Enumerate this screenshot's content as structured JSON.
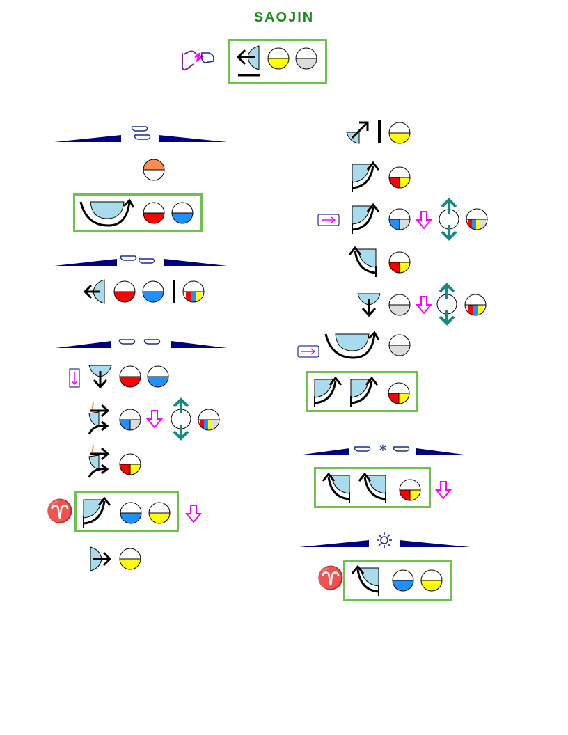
{
  "title": "SAOJIN",
  "symbols": {
    "aries": "♈"
  },
  "colors": {
    "outline_green": "#6cc24a",
    "hand_blue": "#1b2b8a",
    "shape_blue": "#a8dcec",
    "yellow": "#ffff00",
    "gray": "#dcdcdc",
    "red": "#ff0000",
    "blue": "#1e90ff",
    "orange": "#ff8c4c",
    "magenta": "#ff00ff",
    "teal": "#138a82"
  },
  "icons": [
    "hand-icon",
    "wedge-arrow-left-icon",
    "half-circle-icon",
    "split-circle-icon",
    "bowl-arc-icon",
    "tricolor-circle-icon",
    "swing-arrow-icon",
    "down-arrow-icon",
    "vertical-dbl-arrow-icon",
    "sun-icon",
    "aries-icon"
  ]
}
